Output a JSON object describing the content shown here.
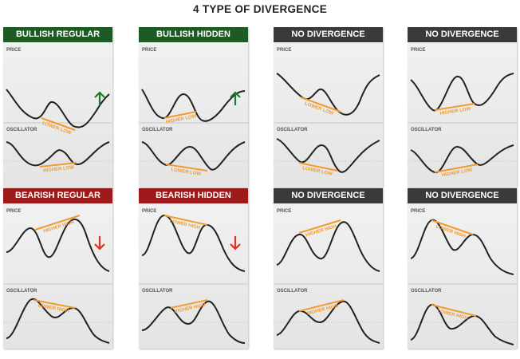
{
  "title": "4 TYPE OF DIVERGENCE",
  "colors": {
    "bullish_header": "#1e5a23",
    "bearish_header": "#9e1a1a",
    "neutral_header": "#3a3a3a",
    "line": "#222222",
    "divergence_line": "#f29a2e",
    "up_arrow": "#1e7a2a",
    "down_arrow": "#e03020"
  },
  "sections": {
    "price": "PRICE",
    "oscillator": "OSCILLATOR"
  },
  "panels": [
    {
      "header": "BULLISH REGULAR",
      "color": "bullish",
      "price_label": "LOWER LOW",
      "osc_label": "HIGHER LOW",
      "arrow": "up-icon"
    },
    {
      "header": "BULLISH HIDDEN",
      "color": "bullish",
      "price_label": "HIGHER LOW",
      "osc_label": "LOWER LOW",
      "arrow": "up-icon"
    },
    {
      "header": "NO DIVERGENCE",
      "color": "neutral",
      "price_label": "LOWER LOW",
      "osc_label": "LOWER LOW",
      "arrow": ""
    },
    {
      "header": "NO DIVERGENCE",
      "color": "neutral",
      "price_label": "HIGHER LOW",
      "osc_label": "HIGHER LOW",
      "arrow": ""
    },
    {
      "header": "BEARISH REGULAR",
      "color": "bearish",
      "price_label": "HIGHER HIGH",
      "osc_label": "LOWER HIGH",
      "arrow": "down-icon"
    },
    {
      "header": "BEARISH HIDDEN",
      "color": "bearish",
      "price_label": "LOWER HIGH",
      "osc_label": "HIGHER HIGH",
      "arrow": "down-icon"
    },
    {
      "header": "NO DIVERGENCE",
      "color": "neutral",
      "price_label": "HIGHER HIGH",
      "osc_label": "HIGHER HIGH",
      "arrow": ""
    },
    {
      "header": "NO DIVERGENCE",
      "color": "neutral",
      "price_label": "LOWER HIGH",
      "osc_label": "LOWER HIGH",
      "arrow": ""
    }
  ]
}
